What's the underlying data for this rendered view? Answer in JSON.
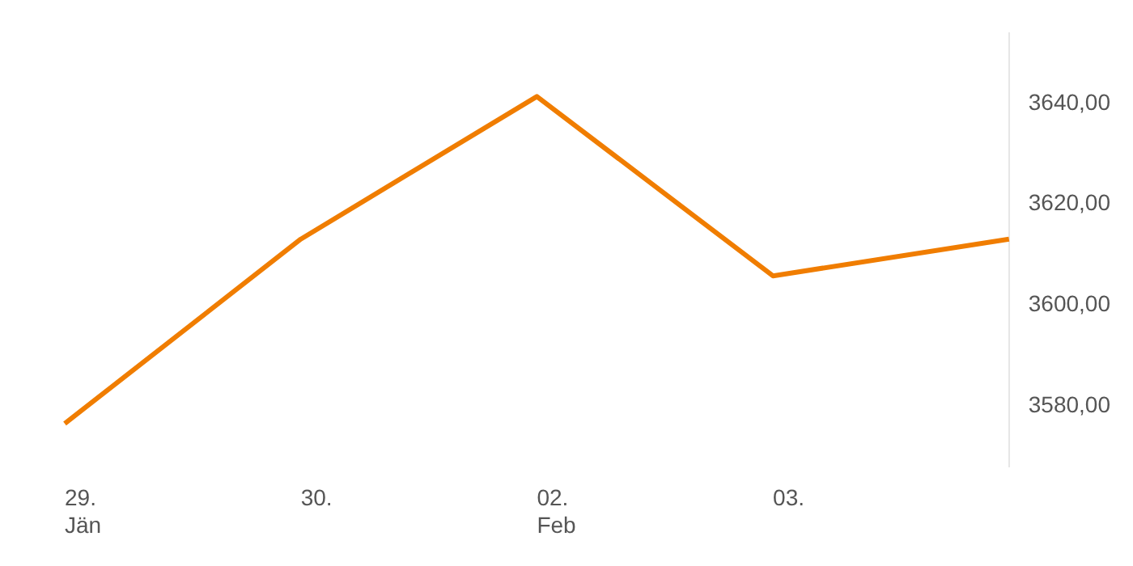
{
  "chart_data": {
    "type": "line",
    "categories": [
      "29.\nJän",
      "30.",
      "02.\nFeb",
      "03.",
      null
    ],
    "series": [
      {
        "color": "#f07d00",
        "values": [
          3576.5,
          3613.1,
          3641.4,
          3605.8,
          3613.1
        ]
      }
    ],
    "ylim": [
      3568,
      3654
    ],
    "yticks": [
      {
        "value": 3580,
        "label": "3580,00"
      },
      {
        "value": 3600,
        "label": "3600,00"
      },
      {
        "value": 3620,
        "label": "3620,00"
      },
      {
        "value": 3640,
        "label": "3640,00"
      }
    ],
    "grid": false,
    "legend": false,
    "marker": "none",
    "line_style": "solid"
  }
}
